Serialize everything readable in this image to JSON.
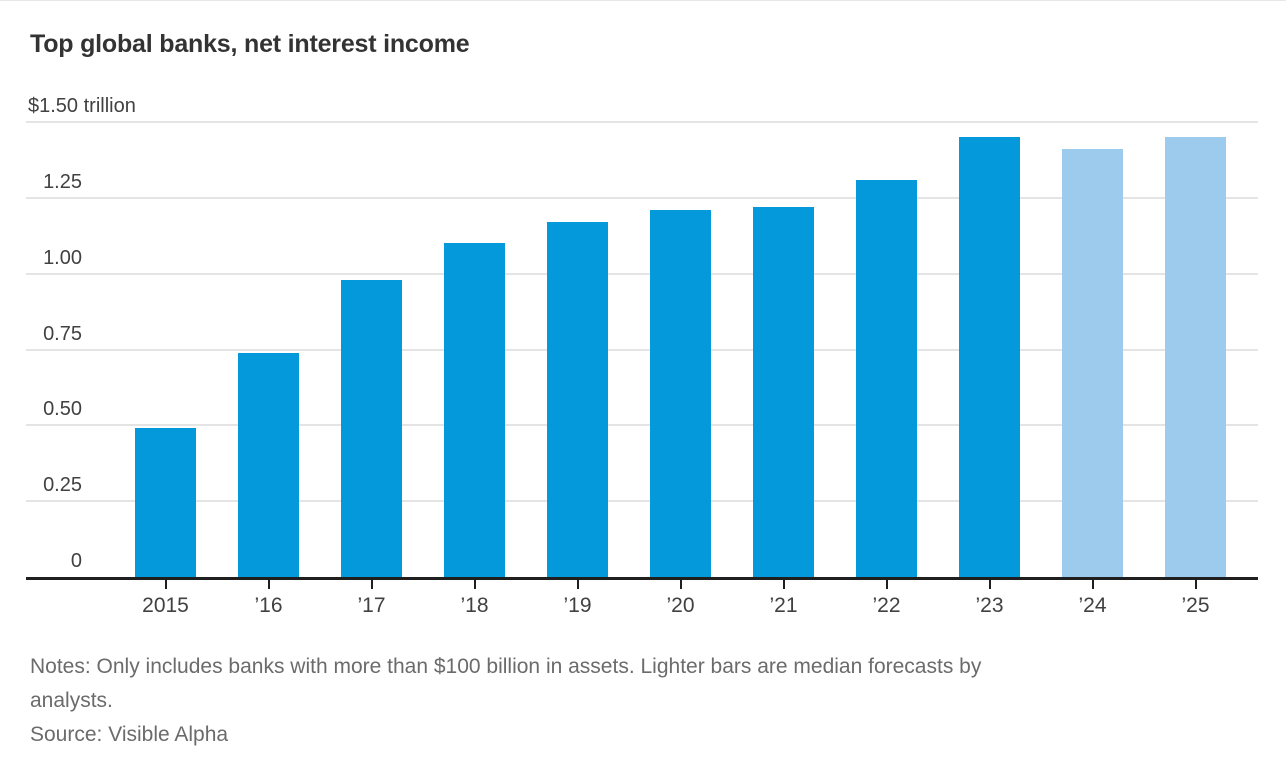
{
  "title": "Top global banks, net interest income",
  "notes": {
    "line1": "Notes: Only includes banks with more than $100 billion in assets. Lighter bars are median forecasts by",
    "line2": "analysts.",
    "source": "Source: Visible Alpha"
  },
  "chart_data": {
    "type": "bar",
    "title": "Top global banks, net interest income",
    "unit": "trillion USD",
    "categories": [
      "2015",
      "’16",
      "’17",
      "’18",
      "’19",
      "’20",
      "’21",
      "’22",
      "’23",
      "’24",
      "’25"
    ],
    "series": [
      {
        "name": "Net interest income",
        "values": [
          0.49,
          0.74,
          0.98,
          1.1,
          1.17,
          1.21,
          1.22,
          1.31,
          1.45,
          1.41,
          1.45
        ],
        "forecast": [
          false,
          false,
          false,
          false,
          false,
          false,
          false,
          false,
          false,
          true,
          true
        ]
      }
    ],
    "xlabel": "",
    "ylabel": "$ trillion",
    "ylim": [
      0,
      1.5
    ],
    "grid": "horizontal",
    "legend": "none",
    "yticks": [
      {
        "value": 1.5,
        "label": "$1.50 trillion"
      },
      {
        "value": 1.25,
        "label": "1.25"
      },
      {
        "value": 1.0,
        "label": "1.00"
      },
      {
        "value": 0.75,
        "label": "0.75"
      },
      {
        "value": 0.5,
        "label": "0.50"
      },
      {
        "value": 0.25,
        "label": "0.25"
      },
      {
        "value": 0.0,
        "label": "0"
      }
    ],
    "colors": {
      "actual_bar": "#0499da",
      "forecast_bar": "#9dcbed",
      "gridline": "#e4e4e4",
      "axis_line": "#1f1f1f",
      "tick_text": "#414141",
      "title_text": "#333333",
      "notes_text": "#6b6b6b"
    }
  }
}
